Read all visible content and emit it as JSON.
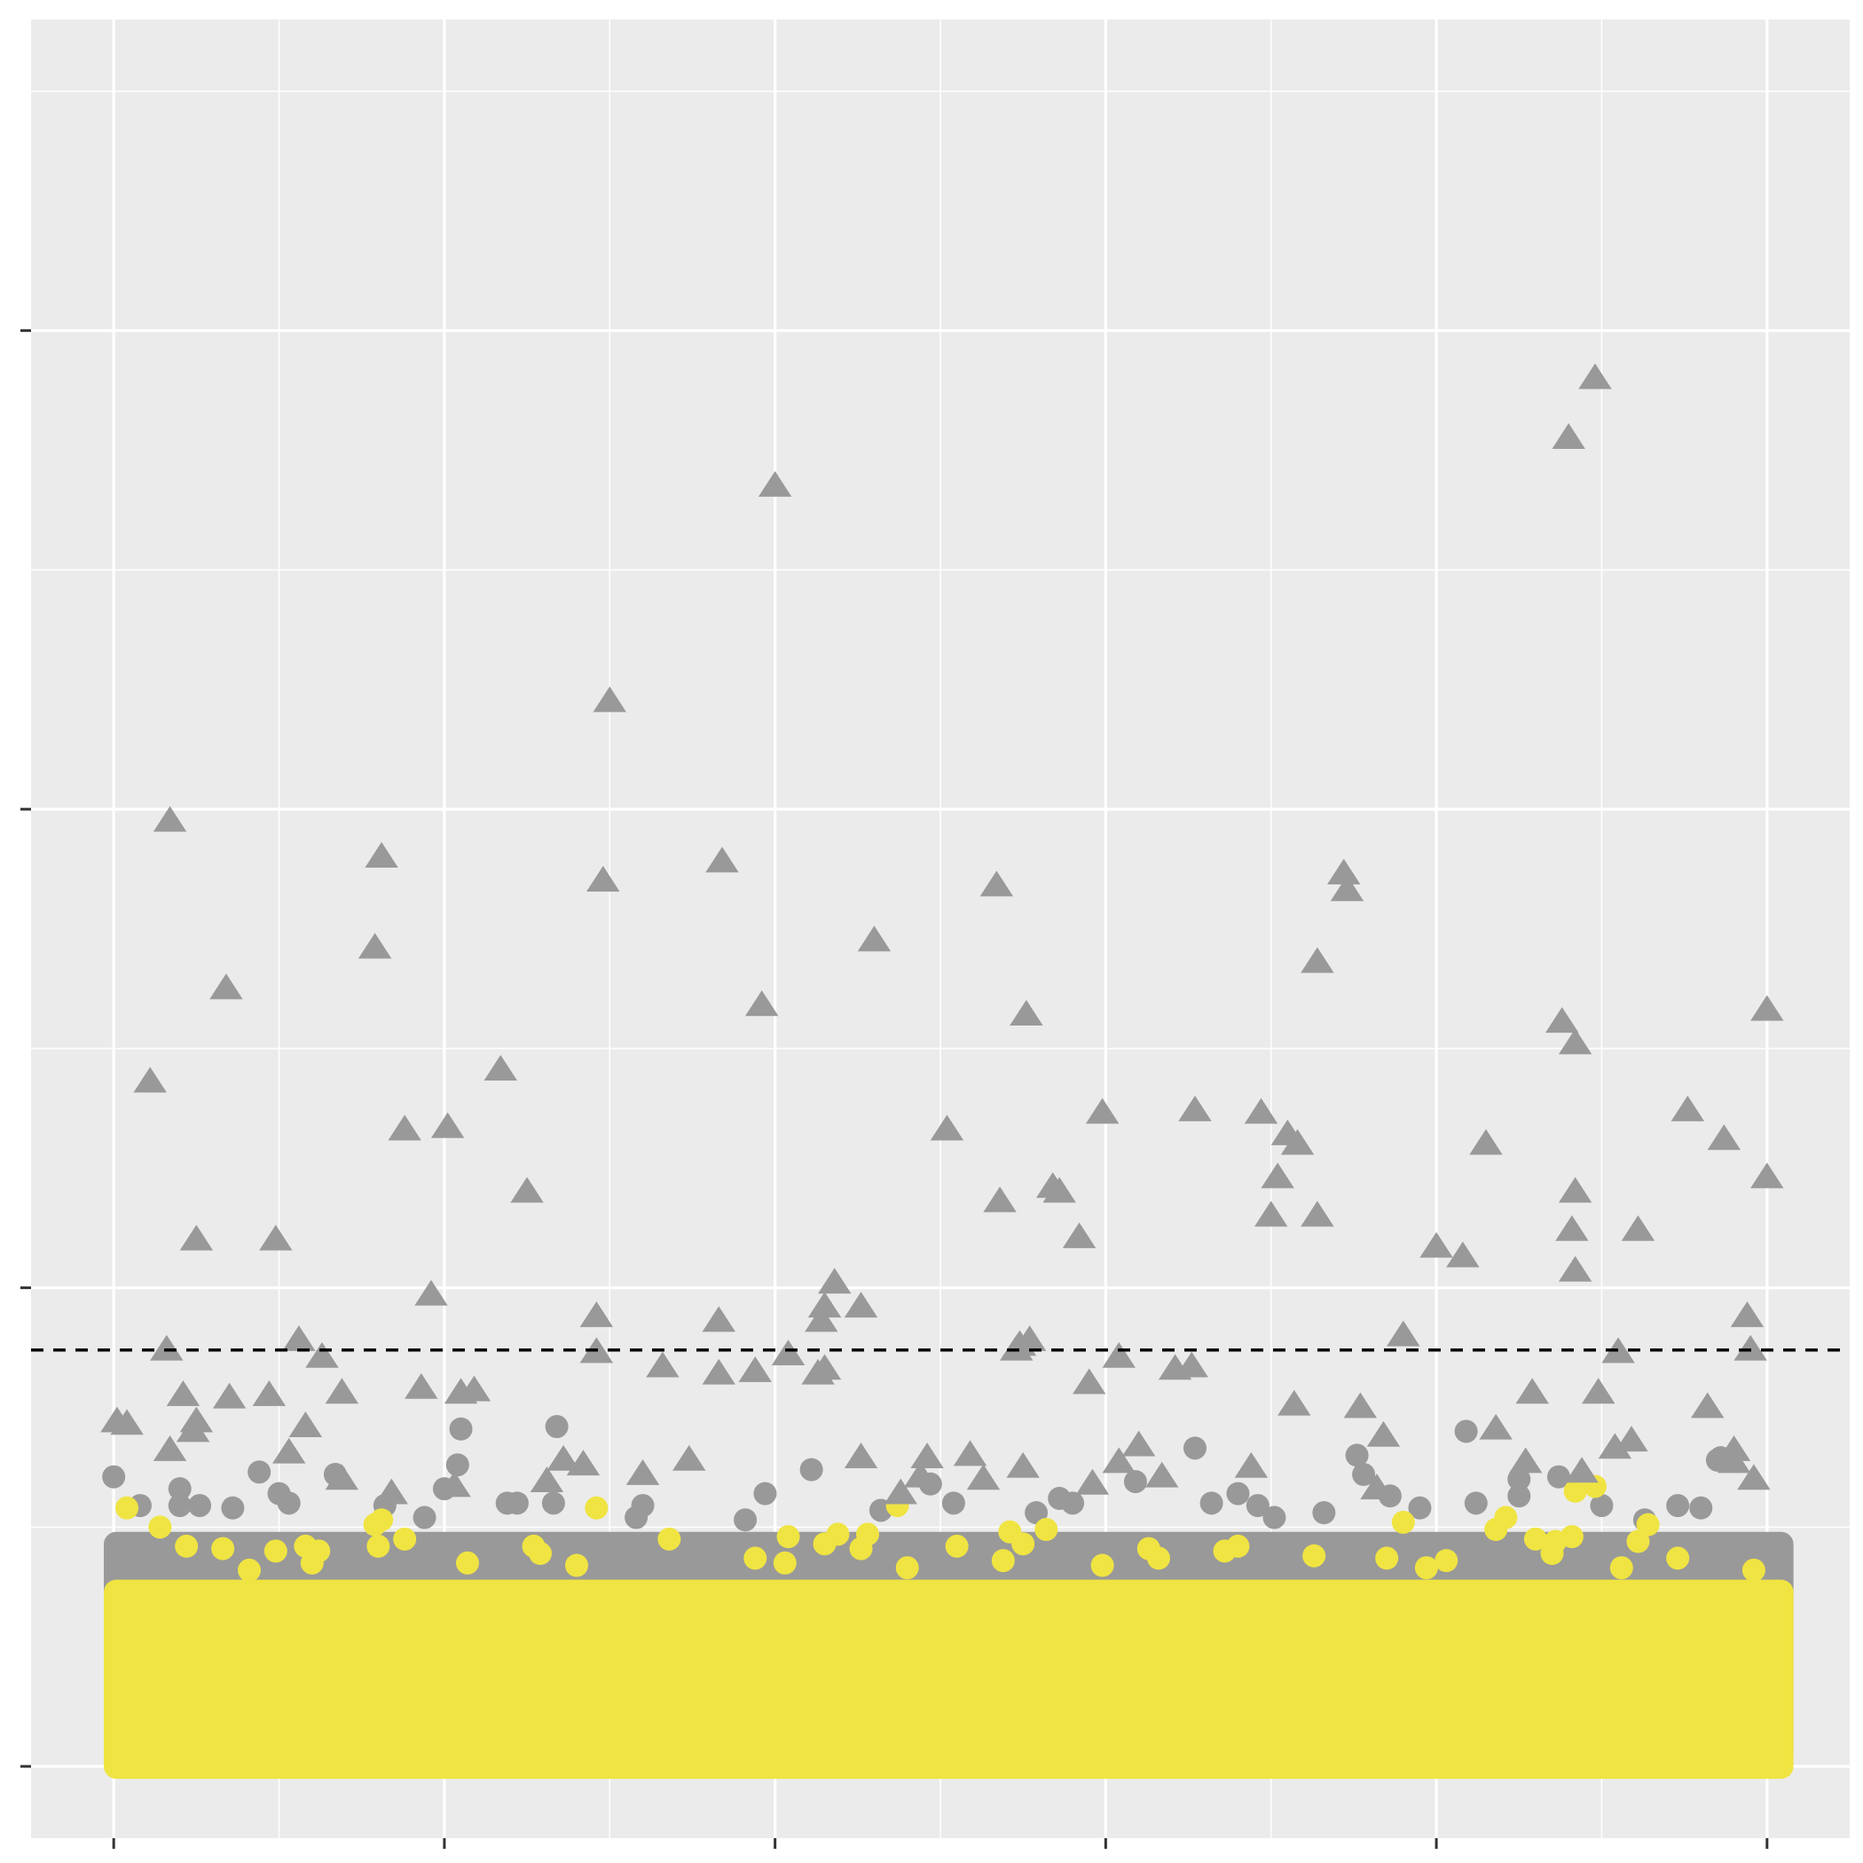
{
  "chart_data": {
    "type": "scatter",
    "title": "",
    "xlabel": "",
    "ylabel": "",
    "xlim": [
      -0.25,
      5.25
    ],
    "ylim": [
      -0.3,
      7.3
    ],
    "x_ticks": [
      0,
      1,
      2,
      3,
      4,
      5
    ],
    "y_ticks": [
      0,
      2,
      4,
      6
    ],
    "grid": true,
    "threshold": 1.74,
    "colors": {
      "panel": "#ebebeb",
      "grid": "#ffffff",
      "gray": "#999999",
      "yellow": "#f0e442",
      "threshold": "#000000"
    },
    "series": [
      {
        "marker": "triangle",
        "color": "#999999",
        "points": [
          [
            4.48,
            5.8
          ],
          [
            4.4,
            5.55
          ],
          [
            2.0,
            5.35
          ],
          [
            1.5,
            4.45
          ],
          [
            0.17,
            3.95
          ],
          [
            0.81,
            3.8
          ],
          [
            1.48,
            3.7
          ],
          [
            1.84,
            3.78
          ],
          [
            2.67,
            3.68
          ],
          [
            3.72,
            3.73
          ],
          [
            3.73,
            3.66
          ],
          [
            0.79,
            3.42
          ],
          [
            2.3,
            3.45
          ],
          [
            3.64,
            3.36
          ],
          [
            0.34,
            3.25
          ],
          [
            1.96,
            3.18
          ],
          [
            2.76,
            3.14
          ],
          [
            4.38,
            3.11
          ],
          [
            4.42,
            3.02
          ],
          [
            5.0,
            3.16
          ],
          [
            0.11,
            2.86
          ],
          [
            1.17,
            2.91
          ],
          [
            0.88,
            2.66
          ],
          [
            1.01,
            2.67
          ],
          [
            2.52,
            2.66
          ],
          [
            2.99,
            2.73
          ],
          [
            3.27,
            2.74
          ],
          [
            3.47,
            2.73
          ],
          [
            3.58,
            2.6
          ],
          [
            3.52,
            2.46
          ],
          [
            3.55,
            2.64
          ],
          [
            4.15,
            2.6
          ],
          [
            4.76,
            2.74
          ],
          [
            4.87,
            2.62
          ],
          [
            5.0,
            2.46
          ],
          [
            2.84,
            2.42
          ],
          [
            2.86,
            2.4
          ],
          [
            3.5,
            2.3
          ],
          [
            1.25,
            2.4
          ],
          [
            0.25,
            2.2
          ],
          [
            0.49,
            2.2
          ],
          [
            2.68,
            2.36
          ],
          [
            2.92,
            2.21
          ],
          [
            3.64,
            2.3
          ],
          [
            4.42,
            2.4
          ],
          [
            4.0,
            2.17
          ],
          [
            4.08,
            2.13
          ],
          [
            4.41,
            2.24
          ],
          [
            4.42,
            2.07
          ],
          [
            4.61,
            2.24
          ],
          [
            2.18,
            2.02
          ],
          [
            2.15,
            1.92
          ],
          [
            2.14,
            1.86
          ],
          [
            0.96,
            1.97
          ],
          [
            0.56,
            1.78
          ],
          [
            0.93,
            1.58
          ],
          [
            1.09,
            1.57
          ],
          [
            1.46,
            1.88
          ],
          [
            1.46,
            1.73
          ],
          [
            1.83,
            1.86
          ],
          [
            1.83,
            1.64
          ],
          [
            2.04,
            1.72
          ],
          [
            2.15,
            1.66
          ],
          [
            2.26,
            1.92
          ],
          [
            0.16,
            1.74
          ],
          [
            2.73,
            1.74
          ],
          [
            2.74,
            1.76
          ],
          [
            2.77,
            1.78
          ],
          [
            3.04,
            1.71
          ],
          [
            3.26,
            1.67
          ],
          [
            3.9,
            1.8
          ],
          [
            4.94,
            1.88
          ],
          [
            4.95,
            1.74
          ],
          [
            0.63,
            1.71
          ],
          [
            0.21,
            1.55
          ],
          [
            0.35,
            1.54
          ],
          [
            0.47,
            1.55
          ],
          [
            0.69,
            1.56
          ],
          [
            1.05,
            1.56
          ],
          [
            1.66,
            1.67
          ],
          [
            1.94,
            1.65
          ],
          [
            2.13,
            1.64
          ],
          [
            2.95,
            1.6
          ],
          [
            3.21,
            1.66
          ],
          [
            4.29,
            1.56
          ],
          [
            4.49,
            1.56
          ],
          [
            4.55,
            1.73
          ],
          [
            0.01,
            1.44
          ],
          [
            0.04,
            1.43
          ],
          [
            0.24,
            1.4
          ],
          [
            0.25,
            1.44
          ],
          [
            0.53,
            1.31
          ],
          [
            1.36,
            1.28
          ],
          [
            0.17,
            1.32
          ],
          [
            3.1,
            1.34
          ],
          [
            3.57,
            1.51
          ],
          [
            3.77,
            1.5
          ],
          [
            4.59,
            1.36
          ],
          [
            0.58,
            1.42
          ],
          [
            1.74,
            1.28
          ],
          [
            2.26,
            1.29
          ],
          [
            2.44,
            1.21
          ],
          [
            3.04,
            1.27
          ],
          [
            3.84,
            1.38
          ],
          [
            4.18,
            1.41
          ],
          [
            4.54,
            1.33
          ],
          [
            4.82,
            1.5
          ],
          [
            4.9,
            1.32
          ],
          [
            0.84,
            1.14
          ],
          [
            1.42,
            1.26
          ],
          [
            1.6,
            1.22
          ],
          [
            2.59,
            1.3
          ],
          [
            2.75,
            1.25
          ],
          [
            2.96,
            1.18
          ],
          [
            3.17,
            1.21
          ],
          [
            3.44,
            1.25
          ],
          [
            4.27,
            1.27
          ],
          [
            4.44,
            1.23
          ],
          [
            4.9,
            1.27
          ],
          [
            0.69,
            1.2
          ],
          [
            1.31,
            1.19
          ],
          [
            4.96,
            1.2
          ],
          [
            2.38,
            1.14
          ],
          [
            3.82,
            1.16
          ],
          [
            1.03,
            1.17
          ],
          [
            2.46,
            1.29
          ],
          [
            2.63,
            1.2
          ]
        ]
      },
      {
        "marker": "circle",
        "color": "#999999",
        "points": [
          [
            1.05,
            1.41
          ],
          [
            1.34,
            1.42
          ],
          [
            3.27,
            1.33
          ],
          [
            4.09,
            1.4
          ],
          [
            0.0,
            1.21
          ],
          [
            0.44,
            1.23
          ],
          [
            0.67,
            1.22
          ],
          [
            1.04,
            1.26
          ],
          [
            2.11,
            1.24
          ],
          [
            3.09,
            1.19
          ],
          [
            3.76,
            1.3
          ],
          [
            3.78,
            1.22
          ],
          [
            4.37,
            1.21
          ],
          [
            4.85,
            1.28
          ],
          [
            4.86,
            1.29
          ],
          [
            1.0,
            1.16
          ],
          [
            2.47,
            1.18
          ],
          [
            2.86,
            1.12
          ],
          [
            3.32,
            1.1
          ],
          [
            3.4,
            1.14
          ],
          [
            3.66,
            1.06
          ],
          [
            4.25,
            1.2
          ],
          [
            0.5,
            1.14
          ],
          [
            0.2,
            1.16
          ],
          [
            0.2,
            1.09
          ],
          [
            1.19,
            1.1
          ],
          [
            1.6,
            1.09
          ],
          [
            1.97,
            1.14
          ],
          [
            3.86,
            1.13
          ],
          [
            4.25,
            1.13
          ],
          [
            4.5,
            1.09
          ],
          [
            4.8,
            1.08
          ],
          [
            0.08,
            1.09
          ],
          [
            0.36,
            1.08
          ],
          [
            0.53,
            1.1
          ],
          [
            0.82,
            1.09
          ],
          [
            1.22,
            1.1
          ],
          [
            1.33,
            1.1
          ],
          [
            2.54,
            1.1
          ],
          [
            2.9,
            1.1
          ],
          [
            3.46,
            1.09
          ],
          [
            3.95,
            1.08
          ],
          [
            4.12,
            1.1
          ],
          [
            0.26,
            1.09
          ],
          [
            2.32,
            1.07
          ],
          [
            4.73,
            1.09
          ],
          [
            1.58,
            1.04
          ],
          [
            2.79,
            1.06
          ],
          [
            3.51,
            1.04
          ],
          [
            0.94,
            1.04
          ],
          [
            1.91,
            1.03
          ],
          [
            4.63,
            1.03
          ]
        ]
      },
      {
        "marker": "circle",
        "color": "#f0e442",
        "points": [
          [
            0.04,
            1.08
          ],
          [
            1.46,
            1.08
          ],
          [
            4.42,
            1.15
          ],
          [
            0.14,
            1.0
          ],
          [
            0.81,
            1.03
          ],
          [
            0.79,
            1.01
          ],
          [
            0.88,
            0.95
          ],
          [
            1.68,
            0.95
          ],
          [
            2.19,
            0.97
          ],
          [
            2.28,
            0.97
          ],
          [
            2.37,
            1.09
          ],
          [
            2.71,
            0.98
          ],
          [
            2.82,
            0.99
          ],
          [
            3.13,
            0.91
          ],
          [
            3.9,
            1.02
          ],
          [
            4.18,
            0.99
          ],
          [
            4.21,
            1.04
          ],
          [
            4.41,
            0.96
          ],
          [
            4.48,
            1.17
          ],
          [
            4.64,
            1.01
          ],
          [
            0.22,
            0.92
          ],
          [
            0.33,
            0.91
          ],
          [
            0.49,
            0.9
          ],
          [
            0.58,
            0.92
          ],
          [
            0.62,
            0.9
          ],
          [
            0.8,
            0.92
          ],
          [
            1.27,
            0.92
          ],
          [
            1.29,
            0.89
          ],
          [
            2.04,
            0.96
          ],
          [
            2.15,
            0.93
          ],
          [
            2.26,
            0.91
          ],
          [
            2.55,
            0.92
          ],
          [
            2.75,
            0.93
          ],
          [
            3.4,
            0.92
          ],
          [
            3.63,
            0.88
          ],
          [
            4.03,
            0.86
          ],
          [
            4.3,
            0.95
          ],
          [
            4.36,
            0.94
          ],
          [
            4.61,
            0.94
          ],
          [
            0.41,
            0.82
          ],
          [
            0.6,
            0.85
          ],
          [
            1.07,
            0.85
          ],
          [
            1.4,
            0.84
          ],
          [
            1.94,
            0.87
          ],
          [
            2.03,
            0.85
          ],
          [
            2.4,
            0.83
          ],
          [
            2.69,
            0.86
          ],
          [
            2.99,
            0.84
          ],
          [
            3.16,
            0.87
          ],
          [
            3.36,
            0.9
          ],
          [
            3.85,
            0.87
          ],
          [
            3.97,
            0.83
          ],
          [
            4.35,
            0.89
          ],
          [
            4.56,
            0.83
          ],
          [
            4.73,
            0.87
          ],
          [
            4.96,
            0.82
          ]
        ]
      }
    ],
    "dense_band": {
      "x_range": [
        -0.03,
        5.08
      ],
      "gray_top": 0.98,
      "yellow_top": 0.78,
      "y_bottom": 0.0
    }
  }
}
